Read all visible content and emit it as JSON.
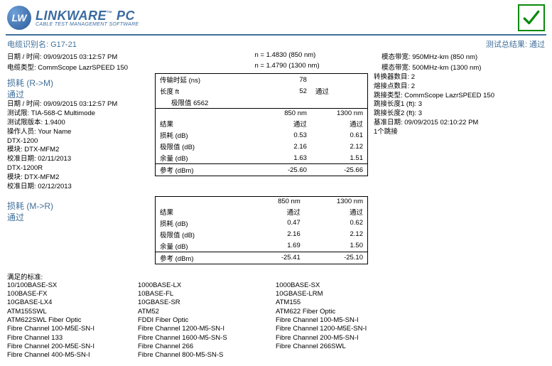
{
  "logo": {
    "circle": "LW",
    "main": "LINKWARE",
    "tm": "™",
    "pc": "PC",
    "sub": "CABLE TEST MANAGEMENT SOFTWARE"
  },
  "top": {
    "cable_id_label": "电缆识别名:",
    "cable_id": "G17-21",
    "overall_label": "测试总结果:",
    "overall": "通过"
  },
  "meta": {
    "date_label": "日期 / 时间:",
    "date": "09/09/2015  03:12:57 PM",
    "n1": "n = 1.4830 (850 nm)",
    "bw1_label": "模态带宽:",
    "bw1": "950MHz-km (850 nm)",
    "cable_type_label": "电缆类型:",
    "cable_type": "CommScope LazrSPEED 150",
    "n2": "n = 1.4790 (1300 nm)",
    "bw2_label": "模态带宽:",
    "bw2": "500MHz-km (1300 nm)"
  },
  "rm": {
    "title": "损耗 (R->M)",
    "pass": "通过",
    "lines": [
      "日期 / 时间: 09/09/2015  03:12:57 PM",
      "测试限:  TIA-568-C Multimode",
      "测试限版本: 1.9400",
      "操作人员:  Your Name",
      "DTX-1200",
      "模块:  DTX-MFM2",
      "校准日期:  02/11/2013",
      "DTX-1200R",
      "模块:  DTX-MFM2",
      "校准日期:  02/12/2013"
    ],
    "right_lines": [
      "转换器数目: 2",
      "熔接点数目: 2",
      "跳接类型:  CommScope LazrSPEED 150",
      "跳接长度1 (ft): 3",
      "跳接长度2 (ft): 3",
      "基准日期: 09/09/2015  02:10:22 PM",
      "1个跳接"
    ],
    "table": {
      "delay_label": "传输时延 (ns)",
      "delay": "78",
      "len_label": "长度  ft",
      "len": "52",
      "len_pass": "通过",
      "limit_label": "极限值 6562",
      "c1": "850 nm",
      "c2": "1300 nm",
      "result_label": "结果",
      "r1": "通过",
      "r2": "通过",
      "loss_label": "损耗 (dB)",
      "l1": "0.53",
      "l2": "0.61",
      "lim_label": "极限值 (dB)",
      "lm1": "2.16",
      "lm2": "2.12",
      "margin_label": "余量 (dB)",
      "m1": "1.63",
      "m2": "1.51",
      "ref_label": "参考 (dBm)",
      "rf1": "-25.60",
      "rf2": "-25.66"
    }
  },
  "mr": {
    "title": "损耗 (M->R)",
    "pass": "通过",
    "table": {
      "c1": "850 nm",
      "c2": "1300 nm",
      "result_label": "结果",
      "r1": "通过",
      "r2": "通过",
      "loss_label": "损耗 (dB)",
      "l1": "0.47",
      "l2": "0.62",
      "lim_label": "极限值 (dB)",
      "lm1": "2.16",
      "lm2": "2.12",
      "margin_label": "余量 (dB)",
      "m1": "1.69",
      "m2": "1.50",
      "ref_label": "参考 (dBm)",
      "rf1": "-25.41",
      "rf2": "-25.10"
    }
  },
  "std": {
    "title": "满足的标准:",
    "col1": [
      "10/100BASE-SX",
      "100BASE-FX",
      "10GBASE-LX4",
      "ATM155SWL",
      "ATM622SWL Fiber Optic",
      "Fibre Channel 100-M5E-SN-I",
      "Fibre Channel 133",
      "Fibre Channel 200-M5E-SN-I",
      "Fibre Channel 400-M5-SN-I"
    ],
    "col2": [
      "1000BASE-LX",
      "10BASE-FL",
      "10GBASE-SR",
      "ATM52",
      "FDDI Fiber Optic",
      "Fibre Channel 1200-M5-SN-I",
      "Fibre Channel 1600-M5-SN-S",
      "Fibre Channel 266",
      "Fibre Channel 800-M5-SN-S"
    ],
    "col3": [
      "1000BASE-SX",
      "10GBASE-LRM",
      "ATM155",
      "ATM622 Fiber Optic",
      "Fibre Channel 100-M5-SN-I",
      "Fibre Channel 1200-M5E-SN-I",
      "Fibre Channel 200-M5-SN-I",
      "Fibre Channel 266SWL",
      ""
    ]
  }
}
